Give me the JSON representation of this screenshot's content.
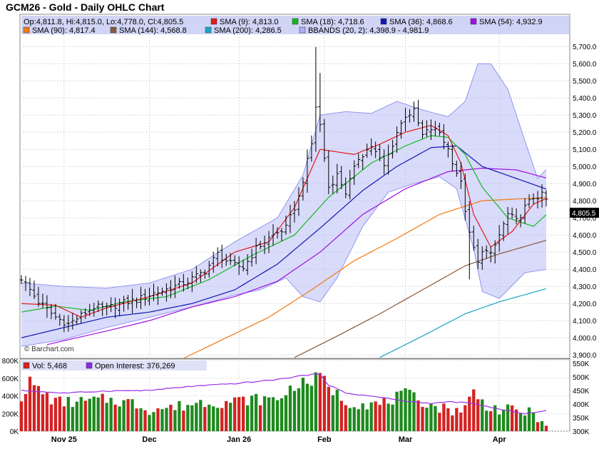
{
  "chart_data": {
    "type": "ohlc",
    "title": "GCM26 - Gold - Daily OHLC Chart",
    "watermark": "© Barchart.com",
    "ohlc_summary": "Op:4,811.8, Hi:4,815.0, Lo:4,778.0, Cl:4,805.5",
    "last_price": "4,805.5",
    "legend": [
      {
        "name": "SMA (9)",
        "value": "4,813.0",
        "color": "#e11b1b"
      },
      {
        "name": "SMA (18)",
        "value": "4,718.6",
        "color": "#14b81e"
      },
      {
        "name": "SMA (36)",
        "value": "4,868.6",
        "color": "#1018b4"
      },
      {
        "name": "SMA (54)",
        "value": "4,932.9",
        "color": "#a010e0"
      },
      {
        "name": "SMA (90)",
        "value": "4,817.4",
        "color": "#f07a10"
      },
      {
        "name": "SMA (144)",
        "value": "4,568.8",
        "color": "#8a5a3a"
      },
      {
        "name": "SMA (200)",
        "value": "4,286.5",
        "color": "#1aa6c8"
      },
      {
        "name": "BBANDS (20, 2)",
        "value": "4,398.9 - 4,981.9",
        "color": "#aab0f5"
      }
    ],
    "price_axis": {
      "ylim": [
        3880,
        5880
      ],
      "ticks": [
        "3,900.0",
        "4,000.0",
        "4,100.0",
        "4,200.0",
        "4,300.0",
        "4,400.0",
        "4,500.0",
        "4,600.0",
        "4,700.0",
        "4,800.0",
        "4,900.0",
        "5,000.0",
        "5,100.0",
        "5,200.0",
        "5,300.0",
        "5,400.0",
        "5,500.0",
        "5,600.0",
        "5,700.0"
      ]
    },
    "x_axis": {
      "labels": [
        {
          "text": "Nov 25",
          "bar": 10
        },
        {
          "text": "Dec",
          "bar": 30
        },
        {
          "text": "Jan 26",
          "bar": 51
        },
        {
          "text": "Feb",
          "bar": 71
        },
        {
          "text": "Mar",
          "bar": 90
        },
        {
          "text": "Apr",
          "bar": 112
        }
      ]
    },
    "bar_count": 124,
    "price_anchors": [
      [
        0,
        4350
      ],
      [
        4,
        4210
      ],
      [
        8,
        4120
      ],
      [
        11,
        4080
      ],
      [
        14,
        4130
      ],
      [
        17,
        4180
      ],
      [
        20,
        4170
      ],
      [
        23,
        4200
      ],
      [
        27,
        4220
      ],
      [
        31,
        4260
      ],
      [
        35,
        4290
      ],
      [
        39,
        4330
      ],
      [
        43,
        4390
      ],
      [
        46,
        4490
      ],
      [
        49,
        4430
      ],
      [
        52,
        4410
      ],
      [
        55,
        4520
      ],
      [
        59,
        4600
      ],
      [
        62,
        4640
      ],
      [
        65,
        4820
      ],
      [
        68,
        5130
      ],
      [
        69,
        5350
      ],
      [
        70,
        5240
      ],
      [
        71,
        5050
      ],
      [
        72,
        4880
      ],
      [
        74,
        4950
      ],
      [
        76,
        4850
      ],
      [
        79,
        5050
      ],
      [
        82,
        5120
      ],
      [
        85,
        5000
      ],
      [
        88,
        5200
      ],
      [
        90,
        5300
      ],
      [
        92,
        5320
      ],
      [
        94,
        5180
      ],
      [
        96,
        5220
      ],
      [
        98,
        5200
      ],
      [
        100,
        5100
      ],
      [
        103,
        4900
      ],
      [
        105,
        4600
      ],
      [
        106,
        4520
      ],
      [
        107,
        4430
      ],
      [
        108,
        4520
      ],
      [
        110,
        4480
      ],
      [
        112,
        4600
      ],
      [
        114,
        4720
      ],
      [
        116,
        4680
      ],
      [
        118,
        4760
      ],
      [
        120,
        4820
      ],
      [
        122,
        4830
      ],
      [
        123,
        4805.5
      ]
    ],
    "sma_anchors": {
      "sma9": [
        [
          0,
          4200
        ],
        [
          8,
          4190
        ],
        [
          14,
          4120
        ],
        [
          20,
          4175
        ],
        [
          30,
          4240
        ],
        [
          40,
          4320
        ],
        [
          50,
          4500
        ],
        [
          58,
          4560
        ],
        [
          64,
          4760
        ],
        [
          70,
          5100
        ],
        [
          78,
          5070
        ],
        [
          84,
          5130
        ],
        [
          90,
          5200
        ],
        [
          96,
          5240
        ],
        [
          100,
          5180
        ],
        [
          103,
          5020
        ],
        [
          106,
          4720
        ],
        [
          110,
          4530
        ],
        [
          115,
          4620
        ],
        [
          120,
          4780
        ],
        [
          123,
          4813
        ]
      ],
      "sma18": [
        [
          0,
          4150
        ],
        [
          8,
          4185
        ],
        [
          16,
          4160
        ],
        [
          24,
          4210
        ],
        [
          34,
          4240
        ],
        [
          44,
          4340
        ],
        [
          54,
          4480
        ],
        [
          64,
          4600
        ],
        [
          72,
          4820
        ],
        [
          82,
          5020
        ],
        [
          90,
          5120
        ],
        [
          96,
          5180
        ],
        [
          100,
          5170
        ],
        [
          104,
          5070
        ],
        [
          108,
          4880
        ],
        [
          114,
          4700
        ],
        [
          120,
          4650
        ],
        [
          123,
          4718.6
        ]
      ],
      "sma36": [
        [
          0,
          4000
        ],
        [
          10,
          4060
        ],
        [
          20,
          4120
        ],
        [
          30,
          4150
        ],
        [
          40,
          4200
        ],
        [
          50,
          4280
        ],
        [
          60,
          4430
        ],
        [
          70,
          4640
        ],
        [
          80,
          4860
        ],
        [
          88,
          5000
        ],
        [
          96,
          5110
        ],
        [
          102,
          5120
        ],
        [
          108,
          5000
        ],
        [
          116,
          4930
        ],
        [
          123,
          4868.6
        ]
      ],
      "sma54": [
        [
          6,
          3960
        ],
        [
          20,
          4040
        ],
        [
          30,
          4100
        ],
        [
          40,
          4180
        ],
        [
          50,
          4240
        ],
        [
          60,
          4330
        ],
        [
          70,
          4500
        ],
        [
          80,
          4720
        ],
        [
          90,
          4870
        ],
        [
          100,
          4970
        ],
        [
          108,
          4990
        ],
        [
          116,
          4980
        ],
        [
          123,
          4932.9
        ]
      ],
      "sma90": [
        [
          38,
          3880
        ],
        [
          48,
          4000
        ],
        [
          58,
          4120
        ],
        [
          68,
          4280
        ],
        [
          78,
          4450
        ],
        [
          88,
          4580
        ],
        [
          98,
          4720
        ],
        [
          108,
          4800
        ],
        [
          116,
          4810
        ],
        [
          123,
          4817.4
        ]
      ],
      "sma144": [
        [
          64,
          3885
        ],
        [
          74,
          4010
        ],
        [
          84,
          4140
        ],
        [
          94,
          4280
        ],
        [
          104,
          4420
        ],
        [
          112,
          4490
        ],
        [
          123,
          4568.8
        ]
      ],
      "sma200": [
        [
          84,
          3885
        ],
        [
          94,
          4010
        ],
        [
          104,
          4140
        ],
        [
          112,
          4210
        ],
        [
          123,
          4286.5
        ]
      ],
      "bb_upper": [
        [
          0,
          4320
        ],
        [
          10,
          4300
        ],
        [
          20,
          4290
        ],
        [
          30,
          4320
        ],
        [
          40,
          4400
        ],
        [
          50,
          4560
        ],
        [
          60,
          4700
        ],
        [
          66,
          4950
        ],
        [
          70,
          5300
        ],
        [
          76,
          5320
        ],
        [
          82,
          5310
        ],
        [
          88,
          5380
        ],
        [
          94,
          5330
        ],
        [
          100,
          5290
        ],
        [
          104,
          5380
        ],
        [
          107,
          5600
        ],
        [
          110,
          5600
        ],
        [
          114,
          5450
        ],
        [
          118,
          5150
        ],
        [
          121,
          4930
        ],
        [
          123,
          4981.9
        ]
      ],
      "bb_lower": [
        [
          0,
          3950
        ],
        [
          10,
          3990
        ],
        [
          20,
          4060
        ],
        [
          30,
          4120
        ],
        [
          40,
          4180
        ],
        [
          50,
          4250
        ],
        [
          56,
          4280
        ],
        [
          62,
          4350
        ],
        [
          66,
          4240
        ],
        [
          70,
          4210
        ],
        [
          74,
          4350
        ],
        [
          80,
          4650
        ],
        [
          86,
          4850
        ],
        [
          92,
          4900
        ],
        [
          98,
          4940
        ],
        [
          102,
          4870
        ],
        [
          106,
          4520
        ],
        [
          108,
          4270
        ],
        [
          112,
          4230
        ],
        [
          118,
          4380
        ],
        [
          123,
          4398.9
        ]
      ]
    },
    "volume_panel": {
      "legend": [
        {
          "name": "Vol",
          "value": "5,468",
          "color": "#d42222"
        },
        {
          "name": "Open Interest",
          "value": "376,269",
          "color": "#8a2be2"
        }
      ],
      "vol_ylim": [
        0,
        800000
      ],
      "vol_ticks": [
        "0K",
        "200K",
        "400K",
        "600K",
        "800K"
      ],
      "oi_ylim": [
        300000,
        560000
      ],
      "oi_ticks": [
        "300K",
        "350K",
        "400K",
        "450K",
        "500K",
        "550K"
      ],
      "vol_anchors": [
        [
          0,
          390
        ],
        [
          2,
          560
        ],
        [
          4,
          470
        ],
        [
          8,
          330
        ],
        [
          14,
          330
        ],
        [
          20,
          360
        ],
        [
          26,
          320
        ],
        [
          30,
          250
        ],
        [
          36,
          270
        ],
        [
          42,
          330
        ],
        [
          48,
          330
        ],
        [
          54,
          360
        ],
        [
          60,
          360
        ],
        [
          64,
          520
        ],
        [
          68,
          560
        ],
        [
          70,
          640
        ],
        [
          72,
          500
        ],
        [
          74,
          420
        ],
        [
          76,
          330
        ],
        [
          84,
          300
        ],
        [
          90,
          420
        ],
        [
          96,
          300
        ],
        [
          100,
          240
        ],
        [
          104,
          260
        ],
        [
          106,
          460
        ],
        [
          108,
          320
        ],
        [
          112,
          240
        ],
        [
          118,
          220
        ],
        [
          122,
          150
        ],
        [
          123,
          10
        ]
      ],
      "oi_anchors": [
        [
          0,
          450
        ],
        [
          10,
          440
        ],
        [
          20,
          448
        ],
        [
          30,
          450
        ],
        [
          40,
          465
        ],
        [
          50,
          475
        ],
        [
          60,
          490
        ],
        [
          66,
          505
        ],
        [
          70,
          510
        ],
        [
          72,
          470
        ],
        [
          76,
          440
        ],
        [
          84,
          425
        ],
        [
          90,
          410
        ],
        [
          96,
          402
        ],
        [
          100,
          408
        ],
        [
          104,
          405
        ],
        [
          108,
          395
        ],
        [
          112,
          380
        ],
        [
          118,
          365
        ],
        [
          122,
          372
        ],
        [
          123,
          376.269
        ]
      ]
    }
  }
}
